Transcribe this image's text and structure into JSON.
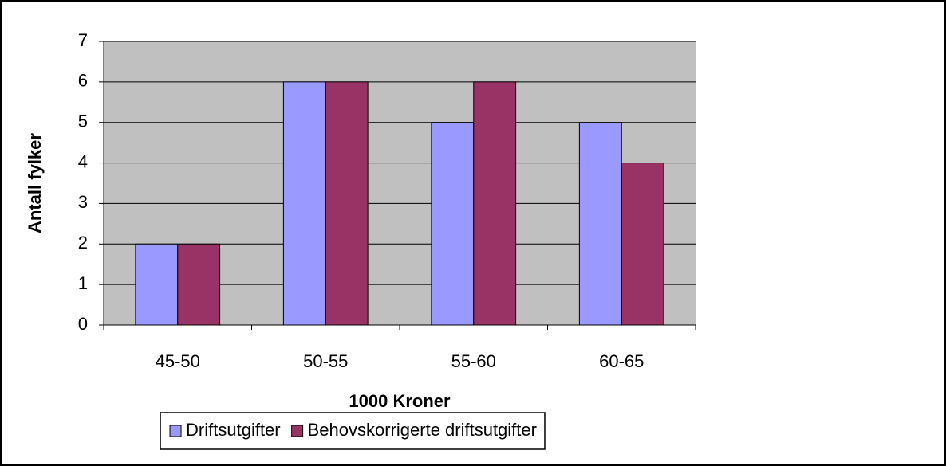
{
  "chart_data": {
    "type": "bar",
    "x_label": "1000 Kroner",
    "y_label": "Antall fylker",
    "categories": [
      "45-50",
      "50-55",
      "55-60",
      "60-65"
    ],
    "series": [
      {
        "name": "Driftsutgifter",
        "color": "#9999ff",
        "values": [
          2,
          6,
          5,
          5
        ]
      },
      {
        "name": "Behovskorrigerte driftsutgifter",
        "color": "#993366",
        "values": [
          2,
          6,
          6,
          4
        ]
      }
    ],
    "ylim": [
      0,
      7
    ],
    "yticks": [
      0,
      1,
      2,
      3,
      4,
      5,
      6,
      7
    ],
    "grid": true,
    "legend": "bottom"
  }
}
